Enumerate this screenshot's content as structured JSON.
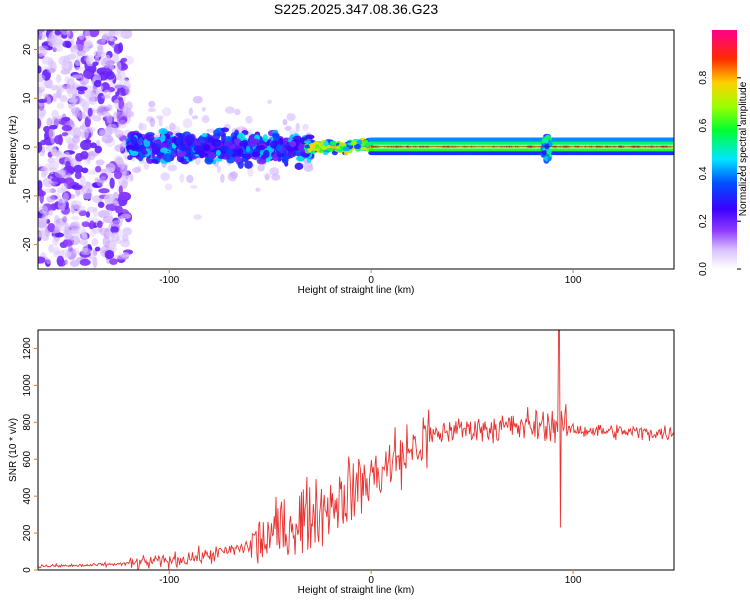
{
  "title": "S225.2025.347.08.36.G23",
  "colors": {
    "snr_line": "#e8322f",
    "plot_border": "#000000",
    "tick_color": "#e07a1a"
  },
  "chart_data": [
    {
      "type": "heatmap",
      "xlabel": "Height of straight line (km)",
      "ylabel": "Frequency (Hz)",
      "xlim": [
        -165,
        150
      ],
      "ylim": [
        -25,
        24
      ],
      "x_ticks": [
        -100,
        0,
        100
      ],
      "y_ticks": [
        -20,
        -10,
        0,
        10,
        20
      ],
      "colorbar": {
        "label": "Normalized spectral amplitude",
        "range": [
          0,
          1
        ],
        "ticks": [
          0.0,
          0.2,
          0.4,
          0.6,
          0.8
        ],
        "tick_labels": [
          "0.0",
          "0.2",
          "0.4",
          "0.6",
          "0.8"
        ],
        "colormap": "white-violet-blue-cyan-green-yellow-red-magenta"
      },
      "segments": [
        {
          "x_range": [
            -165,
            -120
          ],
          "description_free": true,
          "spread_hz": 24,
          "amplitude": 0.08
        },
        {
          "x_range": [
            -120,
            -30
          ],
          "spread_hz": 6,
          "amplitude": 0.25
        },
        {
          "x_range": [
            -30,
            0
          ],
          "spread_hz": 1.5,
          "amplitude": 0.6
        },
        {
          "x_range": [
            0,
            150
          ],
          "spread_hz": 1,
          "amplitude": 0.95
        }
      ],
      "disturbance_x": 87
    },
    {
      "type": "line",
      "xlabel": "Height of straight line (km)",
      "ylabel": "SNR (10 * v/v)",
      "xlim": [
        -165,
        150
      ],
      "ylim": [
        0,
        1300
      ],
      "x_ticks": [
        -100,
        0,
        100
      ],
      "y_ticks": [
        0,
        200,
        400,
        600,
        800,
        1000,
        1200
      ],
      "series": [
        {
          "trend": {
            "x": [
              -165,
              -140,
              -120,
              -100,
              -80,
              -60,
              -50,
              -40,
              -30,
              -20,
              -10,
              0,
              10,
              20,
              30,
              40,
              60,
              80,
              90,
              95,
              100,
              120,
              150
            ],
            "y": [
              20,
              25,
              35,
              50,
              80,
              130,
              180,
              240,
              300,
              360,
              430,
              500,
              580,
              650,
              720,
              760,
              770,
              780,
              790,
              780,
              760,
              750,
              740
            ]
          },
          "spike": {
            "x": 93,
            "max": 1300,
            "min": 230
          }
        }
      ]
    }
  ]
}
